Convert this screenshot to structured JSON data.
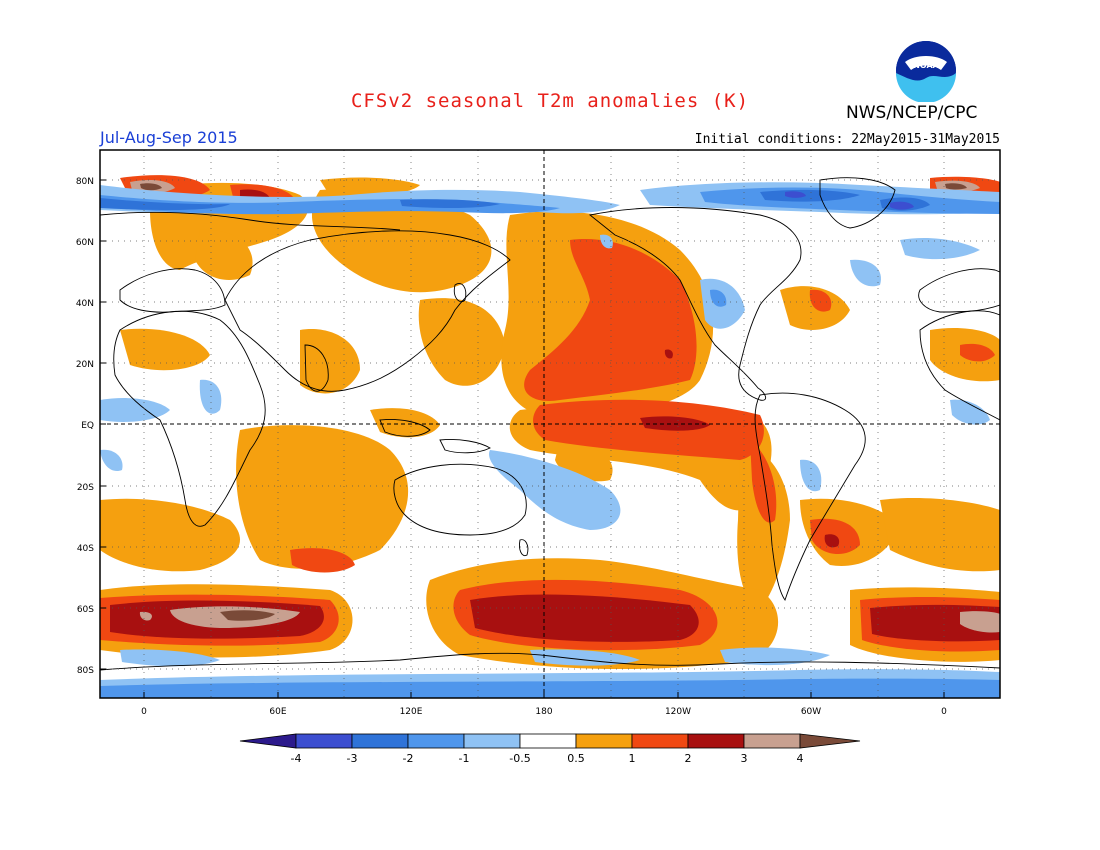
{
  "title": "CFSv2 seasonal T2m anomalies (K)",
  "season": "Jul-Aug-Sep 2015",
  "agency": "NWS/NCEP/CPC",
  "logo_text": "NOAA",
  "initial_conditions": "Initial conditions: 22May2015-31May2015",
  "axes": {
    "lon_labels": [
      "0",
      "60E",
      "120E",
      "180",
      "120W",
      "60W",
      "0"
    ],
    "lat_labels": [
      "80N",
      "60N",
      "40N",
      "20N",
      "EQ",
      "20S",
      "40S",
      "60S",
      "80S"
    ]
  },
  "colorbar": {
    "labels": [
      "-4",
      "-3",
      "-2",
      "-1",
      "-0.5",
      "0.5",
      "1",
      "2",
      "3",
      "4"
    ],
    "colors": [
      "#2c1a8c",
      "#3c4ed0",
      "#2f73d8",
      "#4f96ec",
      "#8fc2f4",
      "#ffffff",
      "#f5a00f",
      "#f04812",
      "#a81010",
      "#c8a090",
      "#7a4a38"
    ]
  }
}
